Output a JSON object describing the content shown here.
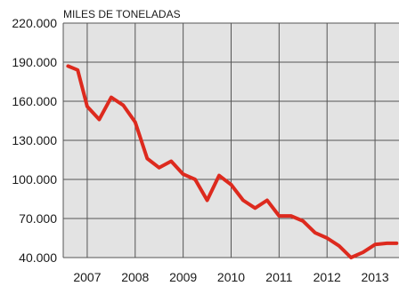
{
  "chart_data": {
    "type": "line",
    "title": "",
    "unit_label": "MILES DE TONELADAS",
    "xlabel": "",
    "ylabel": "",
    "y_ticks": [
      "40.000",
      "70.000",
      "100.000",
      "130.000",
      "160.000",
      "190.000",
      "220.000"
    ],
    "y_tick_values": [
      40000,
      70000,
      100000,
      130000,
      160000,
      190000,
      220000
    ],
    "ylim": [
      40000,
      220000
    ],
    "x_tick_labels": [
      "2007",
      "2008",
      "2009",
      "2010",
      "2011",
      "2012",
      "2013"
    ],
    "xlim": [
      2006.5,
      2013.5
    ],
    "grid": true,
    "colors": {
      "line": "#dd2a1e",
      "plot_bg": "#e3e3e3",
      "grid": "#555555"
    },
    "series": [
      {
        "x": [
          2006.6,
          2006.8,
          2007.0,
          2007.25,
          2007.5,
          2007.75,
          2008.0,
          2008.25,
          2008.5,
          2008.75,
          2009.0,
          2009.25,
          2009.5,
          2009.75,
          2010.0,
          2010.25,
          2010.5,
          2010.75,
          2011.0,
          2011.25,
          2011.5,
          2011.75,
          2012.0,
          2012.25,
          2012.5,
          2012.75,
          2013.0,
          2013.25,
          2013.45
        ],
        "values": [
          187000,
          184000,
          156000,
          146000,
          163000,
          157000,
          144000,
          116000,
          109000,
          114000,
          104000,
          100000,
          84000,
          103000,
          96000,
          84000,
          78000,
          84000,
          72000,
          72000,
          68000,
          59000,
          55000,
          49000,
          40000,
          44000,
          50000,
          51000,
          51000
        ]
      }
    ]
  }
}
